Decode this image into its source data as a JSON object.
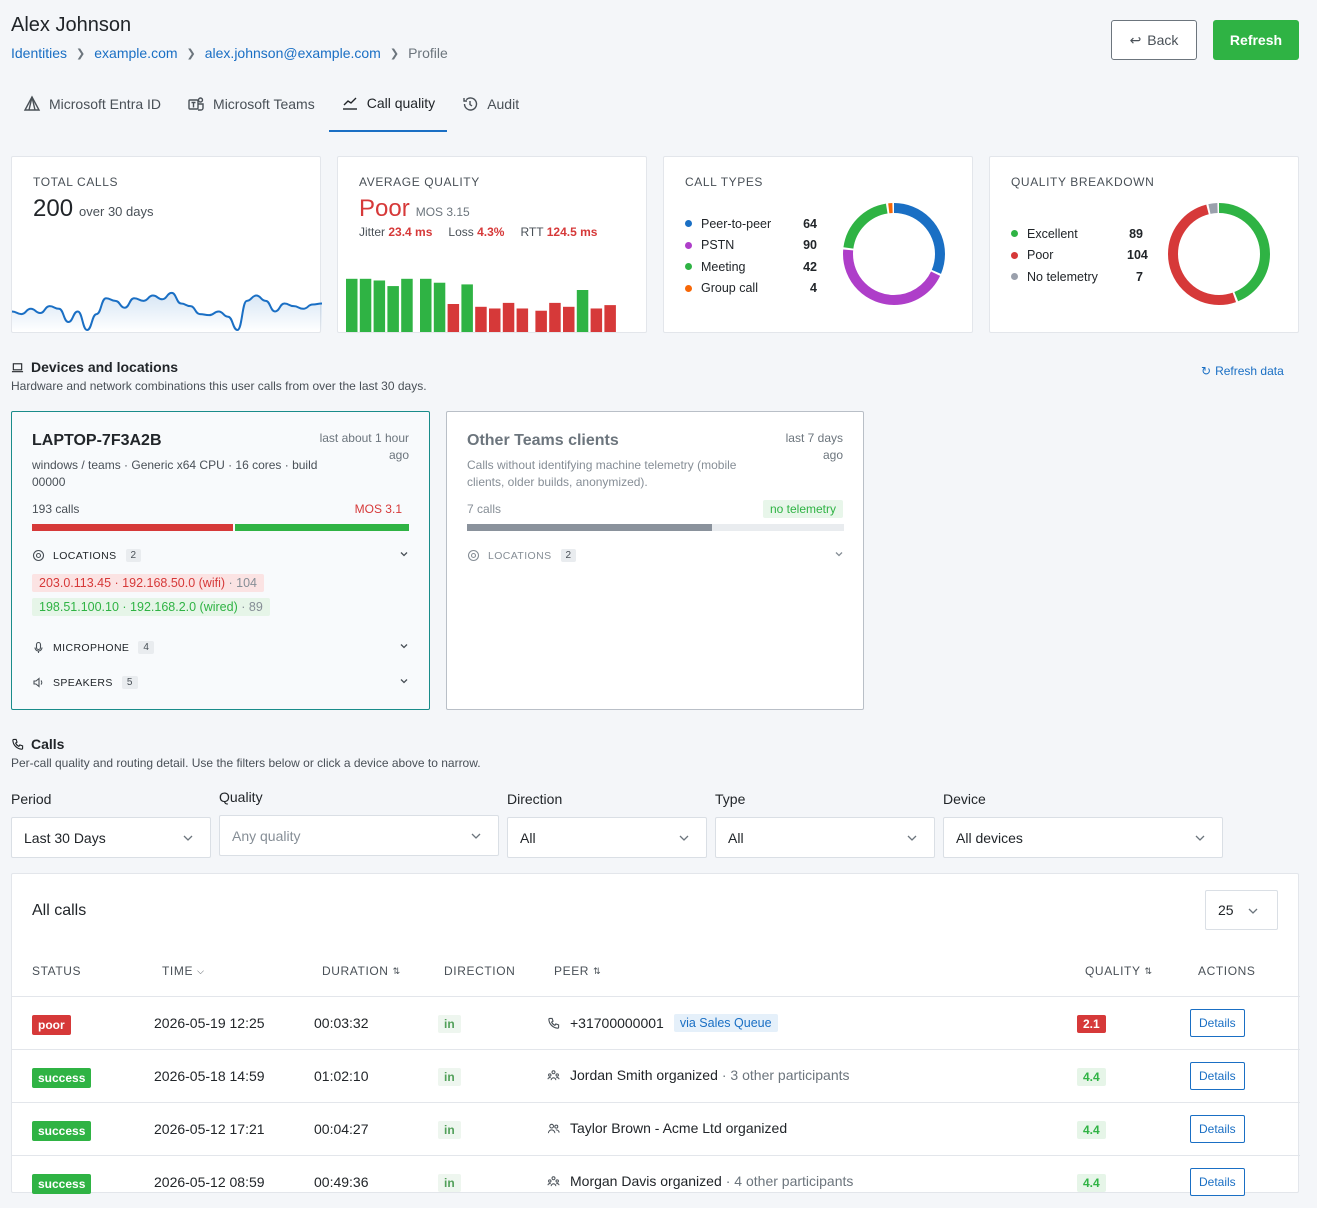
{
  "header": {
    "title": "Alex Johnson",
    "breadcrumb": [
      "Identities",
      "example.com",
      "alex.johnson@example.com"
    ],
    "breadcrumb_current": "Profile",
    "back_label": "Back",
    "refresh_label": "Refresh"
  },
  "tabs": [
    {
      "label": "Microsoft Entra ID",
      "icon": "entra-icon"
    },
    {
      "label": "Microsoft Teams",
      "icon": "teams-icon"
    },
    {
      "label": "Call quality",
      "icon": "chart-line-icon",
      "active": true
    },
    {
      "label": "Audit",
      "icon": "history-icon"
    }
  ],
  "kpis": {
    "total_calls": {
      "label": "TOTAL CALLS",
      "value": "200",
      "sub": "over 30 days"
    },
    "avg_quality": {
      "label": "AVERAGE QUALITY",
      "value": "Poor",
      "mos": "MOS 3.15",
      "jitter_label": "Jitter",
      "jitter": "23.4 ms",
      "loss_label": "Loss",
      "loss": "4.3%",
      "rtt_label": "RTT",
      "rtt": "124.5 ms"
    },
    "call_types": {
      "label": "CALL TYPES",
      "items": [
        {
          "name": "Peer-to-peer",
          "value": "64",
          "color": "#1a6fc4"
        },
        {
          "name": "PSTN",
          "value": "90",
          "color": "#ae3ec9"
        },
        {
          "name": "Meeting",
          "value": "42",
          "color": "#2fb344"
        },
        {
          "name": "Group call",
          "value": "4",
          "color": "#f76707"
        }
      ]
    },
    "quality_breakdown": {
      "label": "QUALITY BREAKDOWN",
      "items": [
        {
          "name": "Excellent",
          "value": "89",
          "color": "#2fb344"
        },
        {
          "name": "Poor",
          "value": "104",
          "color": "#d63939"
        },
        {
          "name": "No telemetry",
          "value": "7",
          "color": "#9aa0ac"
        }
      ]
    }
  },
  "chart_data": [
    {
      "type": "line",
      "values": [
        0.35,
        0.3,
        0.4,
        0.32,
        0.45,
        0.4,
        0.15,
        0.35,
        0.0,
        0.3,
        0.6,
        0.55,
        0.42,
        0.6,
        0.55,
        0.65,
        0.58,
        0.7,
        0.5,
        0.45,
        0.3,
        0.28,
        0.35,
        0.25,
        0.0,
        0.55,
        0.65,
        0.55,
        0.35,
        0.5,
        0.45,
        0.4,
        0.48,
        0.5
      ]
    },
    {
      "type": "bar",
      "values": [
        {
          "v": 0.95,
          "q": "good"
        },
        {
          "v": 0.95,
          "q": "good"
        },
        {
          "v": 0.92,
          "q": "good"
        },
        {
          "v": 0.82,
          "q": "good"
        },
        {
          "v": 0.95,
          "q": "good"
        },
        {
          "v": 0,
          "q": "gap"
        },
        {
          "v": 0.95,
          "q": "good"
        },
        {
          "v": 0.88,
          "q": "good"
        },
        {
          "v": 0.5,
          "q": "poor"
        },
        {
          "v": 0.85,
          "q": "good"
        },
        {
          "v": 0.45,
          "q": "poor"
        },
        {
          "v": 0.42,
          "q": "poor"
        },
        {
          "v": 0.52,
          "q": "poor"
        },
        {
          "v": 0.42,
          "q": "poor"
        },
        {
          "v": 0,
          "q": "gap"
        },
        {
          "v": 0.38,
          "q": "poor"
        },
        {
          "v": 0.52,
          "q": "poor"
        },
        {
          "v": 0.45,
          "q": "poor"
        },
        {
          "v": 0.75,
          "q": "good"
        },
        {
          "v": 0.42,
          "q": "poor"
        },
        {
          "v": 0.48,
          "q": "poor"
        }
      ]
    },
    {
      "type": "pie",
      "categories": [
        "Peer-to-peer",
        "PSTN",
        "Meeting",
        "Group call"
      ],
      "values": [
        64,
        90,
        42,
        4
      ]
    },
    {
      "type": "pie",
      "categories": [
        "Excellent",
        "Poor",
        "No telemetry"
      ],
      "values": [
        89,
        104,
        7
      ]
    }
  ],
  "devices_section": {
    "title": "Devices and locations",
    "subtitle": "Hardware and network combinations this user calls from over the last 30 days.",
    "refresh_label": "Refresh data"
  },
  "devices": [
    {
      "name": "LAPTOP-7F3A2B",
      "when": "last about 1 hour ago",
      "desc": "windows / teams · Generic x64 CPU · 16 cores · build 00000",
      "calls": "193 calls",
      "mos": "MOS 3.1",
      "split": [
        0.535,
        0.465
      ],
      "locations_label": "LOCATIONS",
      "locations_count": "2",
      "locations": [
        {
          "text": "203.0.113.45 · 192.168.50.0 (wifi)",
          "count": "· 104",
          "q": "poor"
        },
        {
          "text": "198.51.100.10 · 192.168.2.0 (wired)",
          "count": "· 89",
          "q": "good"
        }
      ],
      "mic_label": "MICROPHONE",
      "mic_count": "4",
      "spk_label": "SPEAKERS",
      "spk_count": "5"
    },
    {
      "name": "Other Teams clients",
      "when": "last 7 days ago",
      "desc": "Calls without identifying machine telemetry (mobile clients, older builds, anonymized).",
      "calls": "7 calls",
      "badge": "no telemetry",
      "split": [
        0.65
      ],
      "locations_label": "LOCATIONS",
      "locations_count": "2"
    }
  ],
  "calls_section": {
    "title": "Calls",
    "subtitle": "Per-call quality and routing detail. Use the filters below or click a device above to narrow."
  },
  "filters": {
    "period": {
      "label": "Period",
      "value": "Last 30 Days"
    },
    "quality": {
      "label": "Quality",
      "placeholder": "Any quality"
    },
    "direction": {
      "label": "Direction",
      "value": "All"
    },
    "type": {
      "label": "Type",
      "value": "All"
    },
    "device": {
      "label": "Device",
      "value": "All devices"
    }
  },
  "table": {
    "title": "All calls",
    "per_page": "25",
    "columns": [
      "STATUS",
      "TIME",
      "DURATION",
      "DIRECTION",
      "PEER",
      "QUALITY",
      "ACTIONS"
    ],
    "rows": [
      {
        "status": "poor",
        "time": "2026-05-19 12:25",
        "duration": "00:03:32",
        "direction": "in",
        "peer_icon": "phone-icon",
        "peer": "+31700000001",
        "via": "via Sales Queue",
        "quality": "2.1",
        "q": "red",
        "action": "Details"
      },
      {
        "status": "success",
        "time": "2026-05-18 14:59",
        "duration": "01:02:10",
        "direction": "in",
        "peer_icon": "meeting-icon",
        "peer": "Jordan Smith organized",
        "extra": "· 3 other participants",
        "quality": "4.4",
        "q": "green",
        "action": "Details"
      },
      {
        "status": "success",
        "time": "2026-05-12 17:21",
        "duration": "00:04:27",
        "direction": "in",
        "peer_icon": "users-icon",
        "peer": "Taylor Brown - Acme Ltd organized",
        "quality": "4.4",
        "q": "green",
        "action": "Details"
      },
      {
        "status": "success",
        "time": "2026-05-12 08:59",
        "duration": "00:49:36",
        "direction": "in",
        "peer_icon": "meeting-icon",
        "peer": "Morgan Davis organized",
        "extra": "· 4 other participants",
        "quality": "4.4",
        "q": "green",
        "action": "Details"
      }
    ]
  }
}
